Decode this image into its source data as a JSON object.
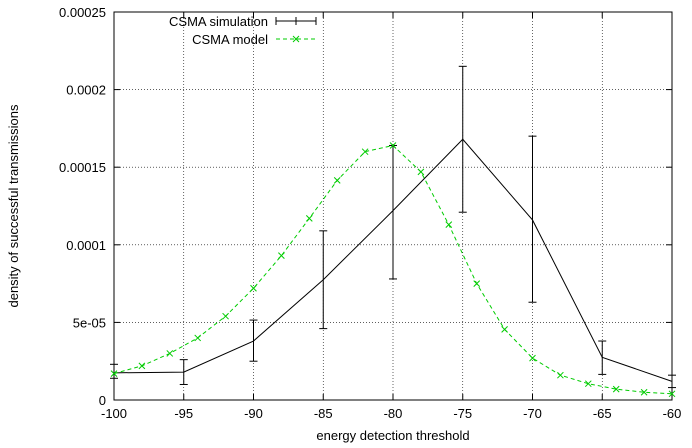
{
  "chart_data": {
    "type": "line",
    "title": "",
    "xlabel": "energy detection threshold",
    "ylabel": "density of successful transmissions",
    "xlim": [
      -100,
      -60
    ],
    "ylim": [
      0,
      0.00025
    ],
    "xticks": [
      -100,
      -95,
      -90,
      -85,
      -80,
      -75,
      -70,
      -65,
      -60
    ],
    "xtick_labels": [
      "-100",
      "-95",
      "-90",
      "-85",
      "-80",
      "-75",
      "-70",
      "-65",
      "-60"
    ],
    "yticks": [
      0,
      5e-05,
      0.0001,
      0.00015,
      0.0002,
      0.00025
    ],
    "ytick_labels": [
      "0",
      "5e-05",
      "0.0001",
      "0.00015",
      "0.0002",
      "0.00025"
    ],
    "grid": true,
    "legend_position": "top-left",
    "series": [
      {
        "name": "CSMA simulation",
        "color": "#000000",
        "style": "solid-with-errorbars",
        "x": [
          -100,
          -95,
          -90,
          -85,
          -80,
          -75,
          -70,
          -65,
          -60
        ],
        "y": [
          1.75e-05,
          1.8e-05,
          3.8e-05,
          7.75e-05,
          0.000122,
          0.000168,
          0.000116,
          2.75e-05,
          1.2e-05
        ],
        "y_low": [
          1.4e-05,
          1e-05,
          2.5e-05,
          4.6e-05,
          7.8e-05,
          0.000121,
          6.3e-05,
          1.65e-05,
          8e-06
        ],
        "y_high": [
          2.3e-05,
          2.6e-05,
          5.15e-05,
          0.000109,
          0.000164,
          0.000215,
          0.00017,
          3.8e-05,
          1.6e-05
        ]
      },
      {
        "name": "CSMA model",
        "color": "#00cc00",
        "style": "dashed-with-x-markers",
        "x": [
          -100,
          -98,
          -96,
          -94,
          -92,
          -90,
          -88,
          -86,
          -84,
          -82,
          -80,
          -78,
          -76,
          -74,
          -72,
          -70,
          -68,
          -66,
          -64,
          -62,
          -60
        ],
        "y": [
          1.7e-05,
          2.2e-05,
          3e-05,
          4e-05,
          5.4e-05,
          7.2e-05,
          9.3e-05,
          0.000117,
          0.0001415,
          0.00016,
          0.000164,
          0.000147,
          0.000113,
          7.5e-05,
          4.55e-05,
          2.7e-05,
          1.6e-05,
          1.05e-05,
          7e-06,
          5e-06,
          4e-06
        ]
      }
    ]
  }
}
